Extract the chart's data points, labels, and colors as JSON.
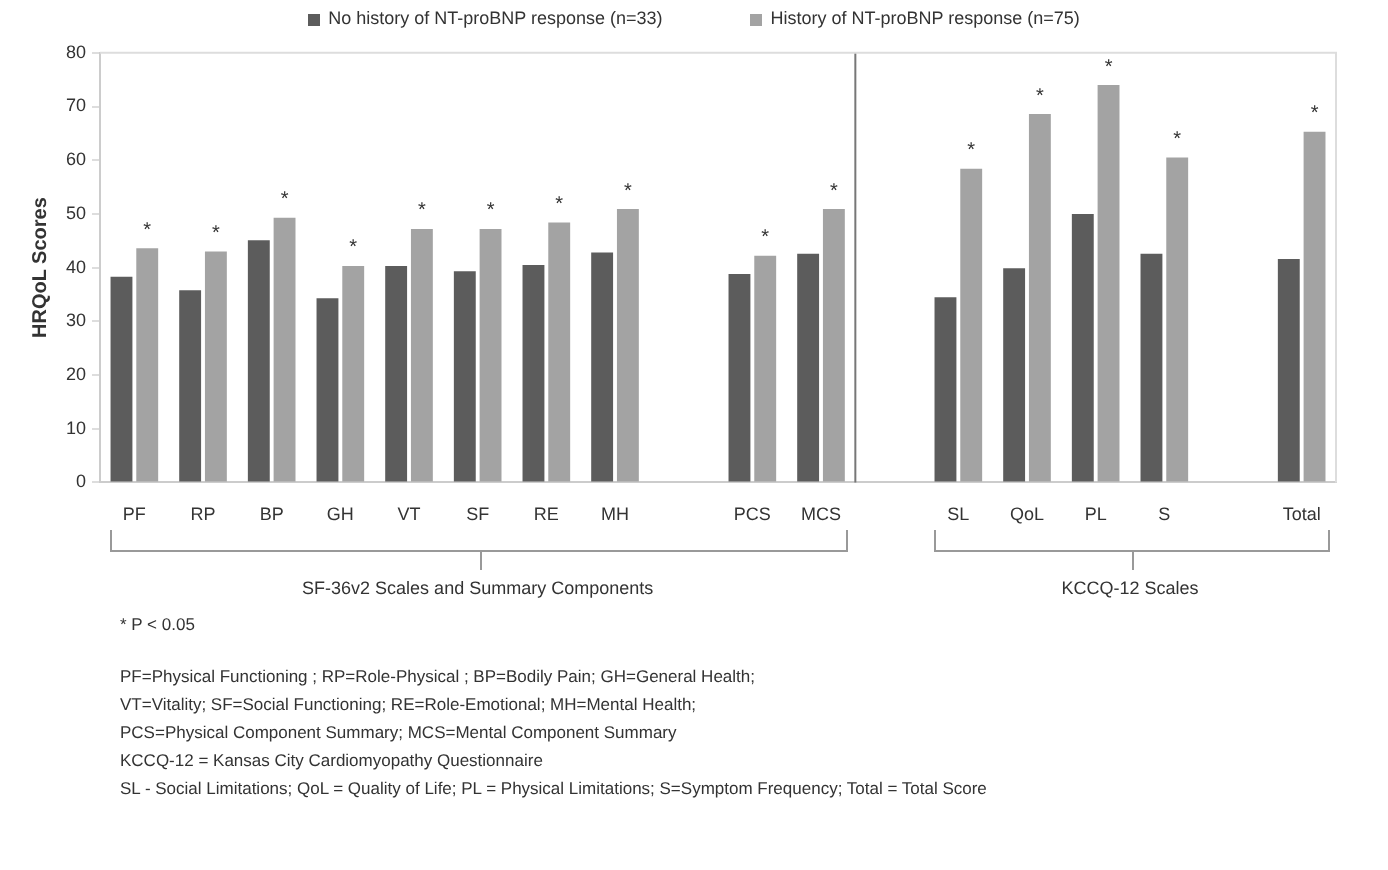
{
  "chart_data": {
    "type": "bar",
    "ylabel": "HRQoL Scores",
    "categories": [
      "PF",
      "RP",
      "BP",
      "GH",
      "VT",
      "SF",
      "RE",
      "MH",
      null,
      "PCS",
      "MCS",
      null,
      "SL",
      "QoL",
      "PL",
      "S",
      null,
      "Total"
    ],
    "series": [
      {
        "name": "No history of NT-proBNP response  (n=33)",
        "color": "#5c5c5c",
        "values": [
          38.3,
          35.8,
          45.1,
          34.3,
          40.3,
          39.3,
          40.5,
          42.8,
          null,
          38.8,
          42.6,
          null,
          34.5,
          39.9,
          50,
          42.6,
          null,
          41.6
        ]
      },
      {
        "name": "History of NT-proBNP response  (n=75)",
        "color": "#a3a3a3",
        "values": [
          43.6,
          43,
          49.3,
          40.3,
          47.2,
          47.2,
          48.4,
          50.9,
          null,
          42.2,
          50.9,
          null,
          58.4,
          68.6,
          74,
          60.5,
          null,
          65.3
        ]
      }
    ],
    "ylim": [
      0,
      80
    ],
    "yticks": [
      0,
      10,
      20,
      30,
      40,
      50,
      60,
      70,
      80
    ],
    "grid": false,
    "legend": "top",
    "annotations": [
      {
        "text": "*",
        "x": "PF",
        "y": 43.6
      },
      {
        "text": "*",
        "x": "RP",
        "y": 43
      },
      {
        "text": "*",
        "x": "BP",
        "y": 49.3
      },
      {
        "text": "*",
        "x": "GH",
        "y": 40.3
      },
      {
        "text": "*",
        "x": "VT",
        "y": 47.2
      },
      {
        "text": "*",
        "x": "SF",
        "y": 47.2
      },
      {
        "text": "*",
        "x": "RE",
        "y": 48.4
      },
      {
        "text": "*",
        "x": "MH",
        "y": 50.9
      },
      {
        "text": "*",
        "x": "PCS",
        "y": 42.2
      },
      {
        "text": "*",
        "x": "MCS",
        "y": 50.9
      },
      {
        "text": "*",
        "x": "SL",
        "y": 58.4
      },
      {
        "text": "*",
        "x": "QoL",
        "y": 68.6
      },
      {
        "text": "*",
        "x": "PL",
        "y": 74
      },
      {
        "text": "*",
        "x": "S",
        "y": 60.5
      },
      {
        "text": "*",
        "x": "Total",
        "y": 65.3
      },
      "SF-36v2 Scales and Summary Components",
      "KCCQ-12 Scales",
      "* P < 0.05",
      "PF=Physical Functioning ; RP=Role-Physical ; BP=Bodily Pain; GH=General Health;",
      "VT=Vitality; SF=Social Functioning; RE=Role-Emotional; MH=Mental Health;",
      "PCS=Physical Component Summary; MCS=Mental Component Summary",
      "KCCQ-12 = Kansas City Cardiomyopathy Questionnaire",
      "SL - Social Limitations;  QoL = Quality of Life; PL = Physical Limitations; S=Symptom Frequency;   Total = Total Score"
    ]
  }
}
